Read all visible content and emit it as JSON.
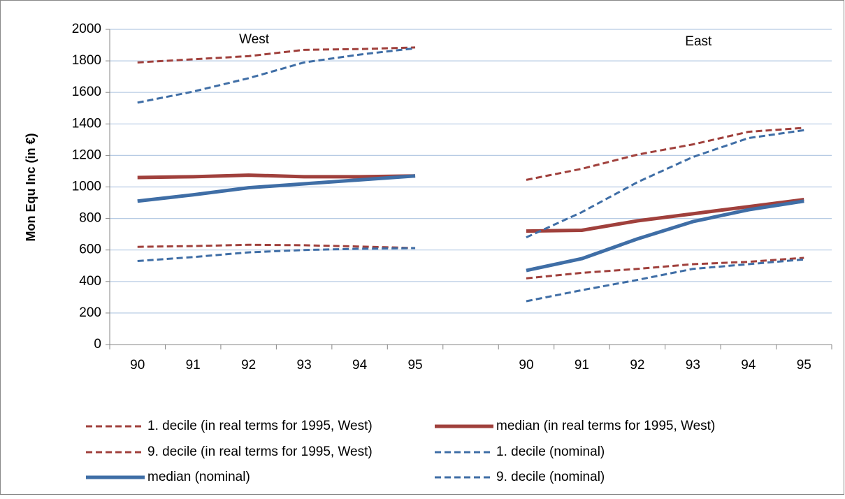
{
  "chart_data": {
    "type": "line",
    "y_label": "Mon Equ Inc (in €)",
    "annotations": [
      "West",
      "East"
    ],
    "categories": [
      "90",
      "91",
      "92",
      "93",
      "94",
      "95",
      null,
      "90",
      "91",
      "92",
      "93",
      "94",
      "95"
    ],
    "ylim": [
      0,
      2000
    ],
    "yticks": [
      0,
      200,
      400,
      600,
      800,
      1000,
      1200,
      1400,
      1600,
      1800,
      2000
    ],
    "grid": true,
    "series": [
      {
        "name": "1. decile (in real terms for 1995, West)",
        "color": "#a0403c",
        "dashed": true,
        "values": [
          620,
          625,
          633,
          630,
          622,
          612,
          null,
          420,
          455,
          480,
          510,
          525,
          550
        ]
      },
      {
        "name": "median (in real terms for 1995, West)",
        "color": "#a0403c",
        "dashed": false,
        "values": [
          1060,
          1065,
          1075,
          1065,
          1065,
          1070,
          null,
          720,
          725,
          785,
          830,
          875,
          920
        ]
      },
      {
        "name": "9. decile (in real terms for 1995, West)",
        "color": "#a0403c",
        "dashed": true,
        "values": [
          1790,
          1810,
          1830,
          1870,
          1875,
          1885,
          null,
          1045,
          1115,
          1205,
          1270,
          1350,
          1375
        ]
      },
      {
        "name": "1. decile (nominal)",
        "color": "#3f6ea6",
        "dashed": true,
        "values": [
          530,
          555,
          585,
          600,
          608,
          612,
          null,
          275,
          345,
          410,
          480,
          510,
          540
        ]
      },
      {
        "name": "median (nominal)",
        "color": "#3f6ea6",
        "dashed": false,
        "values": [
          910,
          950,
          995,
          1020,
          1045,
          1070,
          null,
          470,
          545,
          670,
          780,
          855,
          910
        ]
      },
      {
        "name": "9. decile (nominal)",
        "color": "#3f6ea6",
        "dashed": true,
        "values": [
          1535,
          1605,
          1690,
          1790,
          1840,
          1880,
          null,
          680,
          840,
          1030,
          1190,
          1310,
          1360
        ]
      }
    ]
  }
}
